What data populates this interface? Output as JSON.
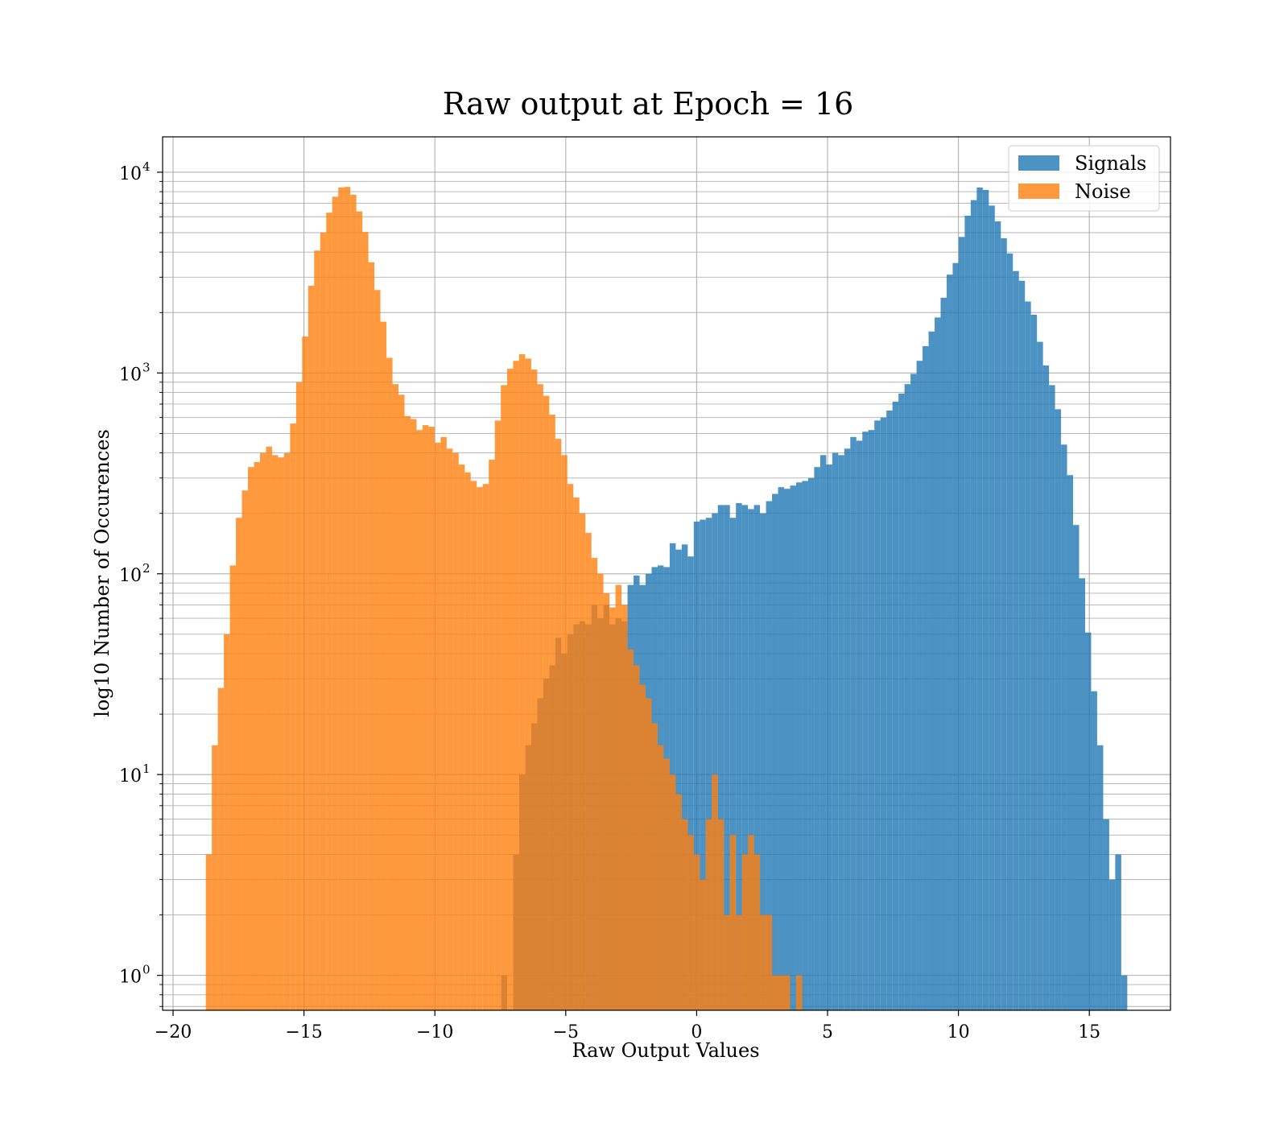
{
  "chart_data": {
    "type": "bar",
    "title": "Raw output at Epoch = 16",
    "xlabel": "Raw Output Values",
    "ylabel": "log10 Number of Occurences",
    "xlim": [
      -20.4,
      18.1
    ],
    "ylim": [
      0.67,
      15000
    ],
    "yscale": "log",
    "grid": true,
    "legend_position": "top-right",
    "x_ticks": [
      {
        "value": -20,
        "label": "−20"
      },
      {
        "value": -15,
        "label": "−15"
      },
      {
        "value": -10,
        "label": "−10"
      },
      {
        "value": -5,
        "label": "−5"
      },
      {
        "value": 0,
        "label": "0"
      },
      {
        "value": 5,
        "label": "5"
      },
      {
        "value": 10,
        "label": "10"
      },
      {
        "value": 15,
        "label": "15"
      }
    ],
    "y_ticks": [
      {
        "value": 1,
        "base": "10",
        "exp": "0"
      },
      {
        "value": 10,
        "base": "10",
        "exp": "1"
      },
      {
        "value": 100,
        "base": "10",
        "exp": "2"
      },
      {
        "value": 1000,
        "base": "10",
        "exp": "3"
      },
      {
        "value": 10000,
        "base": "10",
        "exp": "4"
      }
    ],
    "series": [
      {
        "name": "Signals",
        "color": "#1f77b4",
        "opacity": 0.8,
        "bins": [
          [
            -7.47,
            -7.24,
            1
          ],
          [
            -7.24,
            -7.01,
            0
          ],
          [
            -7.01,
            -6.78,
            4
          ],
          [
            -6.78,
            -6.55,
            10
          ],
          [
            -6.55,
            -6.32,
            14
          ],
          [
            -6.32,
            -6.09,
            18
          ],
          [
            -6.09,
            -5.86,
            24
          ],
          [
            -5.86,
            -5.63,
            30
          ],
          [
            -5.63,
            -5.4,
            35
          ],
          [
            -5.4,
            -5.17,
            48
          ],
          [
            -5.17,
            -4.94,
            40
          ],
          [
            -4.94,
            -4.71,
            50
          ],
          [
            -4.71,
            -4.48,
            56
          ],
          [
            -4.48,
            -4.25,
            58
          ],
          [
            -4.25,
            -4.02,
            56
          ],
          [
            -4.02,
            -3.79,
            70
          ],
          [
            -3.79,
            -3.56,
            60
          ],
          [
            -3.56,
            -3.33,
            70
          ],
          [
            -3.33,
            -3.1,
            56
          ],
          [
            -3.1,
            -2.87,
            60
          ],
          [
            -2.87,
            -2.64,
            58
          ],
          [
            -2.64,
            -2.41,
            88
          ],
          [
            -2.41,
            -2.18,
            98
          ],
          [
            -2.18,
            -1.95,
            88
          ],
          [
            -1.95,
            -1.72,
            100
          ],
          [
            -1.72,
            -1.49,
            108
          ],
          [
            -1.49,
            -1.26,
            110
          ],
          [
            -1.26,
            -1.03,
            108
          ],
          [
            -1.03,
            -0.8,
            142
          ],
          [
            -0.8,
            -0.57,
            132
          ],
          [
            -0.57,
            -0.34,
            140
          ],
          [
            -0.34,
            -0.11,
            122
          ],
          [
            -0.11,
            0.12,
            182
          ],
          [
            0.12,
            0.35,
            186
          ],
          [
            0.35,
            0.58,
            190
          ],
          [
            0.58,
            0.81,
            200
          ],
          [
            0.81,
            1.04,
            220
          ],
          [
            1.04,
            1.27,
            220
          ],
          [
            1.27,
            1.5,
            190
          ],
          [
            1.5,
            1.73,
            225
          ],
          [
            1.73,
            1.96,
            220
          ],
          [
            1.96,
            2.19,
            210
          ],
          [
            2.19,
            2.42,
            220
          ],
          [
            2.42,
            2.65,
            200
          ],
          [
            2.65,
            2.88,
            230
          ],
          [
            2.88,
            3.11,
            250
          ],
          [
            3.11,
            3.34,
            270
          ],
          [
            3.34,
            3.57,
            265
          ],
          [
            3.57,
            3.8,
            275
          ],
          [
            3.8,
            4.03,
            285
          ],
          [
            4.03,
            4.26,
            290
          ],
          [
            4.26,
            4.49,
            300
          ],
          [
            4.49,
            4.72,
            340
          ],
          [
            4.72,
            4.95,
            390
          ],
          [
            4.95,
            5.18,
            350
          ],
          [
            5.18,
            5.41,
            400
          ],
          [
            5.41,
            5.64,
            390
          ],
          [
            5.64,
            5.87,
            420
          ],
          [
            5.87,
            6.1,
            480
          ],
          [
            6.1,
            6.33,
            460
          ],
          [
            6.33,
            6.56,
            510
          ],
          [
            6.56,
            6.79,
            520
          ],
          [
            6.79,
            7.02,
            580
          ],
          [
            7.02,
            7.25,
            600
          ],
          [
            7.25,
            7.48,
            650
          ],
          [
            7.48,
            7.71,
            720
          ],
          [
            7.71,
            7.94,
            790
          ],
          [
            7.94,
            8.17,
            880
          ],
          [
            8.17,
            8.4,
            990
          ],
          [
            8.4,
            8.63,
            1150
          ],
          [
            8.63,
            8.86,
            1360
          ],
          [
            8.86,
            9.09,
            1610
          ],
          [
            9.09,
            9.32,
            1890
          ],
          [
            9.32,
            9.55,
            2370
          ],
          [
            9.55,
            9.78,
            3090
          ],
          [
            9.78,
            10.01,
            3530
          ],
          [
            10.01,
            10.24,
            4760
          ],
          [
            10.24,
            10.47,
            6070
          ],
          [
            10.47,
            10.7,
            7260
          ],
          [
            10.7,
            10.93,
            8390
          ],
          [
            10.93,
            11.16,
            8160
          ],
          [
            11.16,
            11.39,
            6820
          ],
          [
            11.39,
            11.62,
            5690
          ],
          [
            11.62,
            11.85,
            4690
          ],
          [
            11.85,
            12.08,
            3940
          ],
          [
            12.08,
            12.31,
            3220
          ],
          [
            12.31,
            12.54,
            2880
          ],
          [
            12.54,
            12.77,
            2270
          ],
          [
            12.77,
            13.0,
            1950
          ],
          [
            13.0,
            13.23,
            1430
          ],
          [
            13.23,
            13.46,
            1090
          ],
          [
            13.46,
            13.69,
            870
          ],
          [
            13.69,
            13.92,
            660
          ],
          [
            13.92,
            14.15,
            440
          ],
          [
            14.15,
            14.38,
            310
          ],
          [
            14.38,
            14.61,
            175
          ],
          [
            14.61,
            14.84,
            95
          ],
          [
            14.84,
            15.07,
            51
          ],
          [
            15.07,
            15.3,
            26
          ],
          [
            15.3,
            15.53,
            14
          ],
          [
            15.53,
            15.76,
            6
          ],
          [
            15.76,
            15.99,
            3
          ],
          [
            15.99,
            16.22,
            4
          ],
          [
            16.22,
            16.45,
            1
          ]
        ]
      },
      {
        "name": "Noise",
        "color": "#ff7f0e",
        "opacity": 0.8,
        "bins": [
          [
            -18.75,
            -18.52,
            4
          ],
          [
            -18.52,
            -18.29,
            14
          ],
          [
            -18.29,
            -18.06,
            27
          ],
          [
            -18.06,
            -17.83,
            50
          ],
          [
            -17.83,
            -17.6,
            110
          ],
          [
            -17.6,
            -17.37,
            190
          ],
          [
            -17.37,
            -17.14,
            260
          ],
          [
            -17.14,
            -16.91,
            340
          ],
          [
            -16.91,
            -16.68,
            360
          ],
          [
            -16.68,
            -16.45,
            400
          ],
          [
            -16.45,
            -16.22,
            430
          ],
          [
            -16.22,
            -15.99,
            390
          ],
          [
            -15.99,
            -15.76,
            380
          ],
          [
            -15.76,
            -15.53,
            400
          ],
          [
            -15.53,
            -15.3,
            560
          ],
          [
            -15.3,
            -15.07,
            900
          ],
          [
            -15.07,
            -14.84,
            1520
          ],
          [
            -14.84,
            -14.61,
            2720
          ],
          [
            -14.61,
            -14.38,
            4070
          ],
          [
            -14.38,
            -14.15,
            5010
          ],
          [
            -14.15,
            -13.92,
            6290
          ],
          [
            -13.92,
            -13.69,
            7550
          ],
          [
            -13.69,
            -13.46,
            8400
          ],
          [
            -13.46,
            -13.23,
            8450
          ],
          [
            -13.23,
            -13.0,
            7730
          ],
          [
            -13.0,
            -12.77,
            6380
          ],
          [
            -12.77,
            -12.54,
            5040
          ],
          [
            -12.54,
            -12.31,
            3560
          ],
          [
            -12.31,
            -12.08,
            2590
          ],
          [
            -12.08,
            -11.85,
            1800
          ],
          [
            -11.85,
            -11.62,
            1190
          ],
          [
            -11.62,
            -11.39,
            880
          ],
          [
            -11.39,
            -11.16,
            780
          ],
          [
            -11.16,
            -10.93,
            610
          ],
          [
            -10.93,
            -10.7,
            590
          ],
          [
            -10.7,
            -10.47,
            520
          ],
          [
            -10.47,
            -10.24,
            550
          ],
          [
            -10.24,
            -10.01,
            540
          ],
          [
            -10.01,
            -9.78,
            450
          ],
          [
            -9.78,
            -9.55,
            480
          ],
          [
            -9.55,
            -9.32,
            420
          ],
          [
            -9.32,
            -9.09,
            400
          ],
          [
            -9.09,
            -8.86,
            350
          ],
          [
            -8.86,
            -8.63,
            320
          ],
          [
            -8.63,
            -8.4,
            290
          ],
          [
            -8.4,
            -8.17,
            270
          ],
          [
            -8.17,
            -7.94,
            280
          ],
          [
            -7.94,
            -7.71,
            370
          ],
          [
            -7.71,
            -7.48,
            580
          ],
          [
            -7.48,
            -7.24,
            870
          ],
          [
            -7.24,
            -7.01,
            1050
          ],
          [
            -7.01,
            -6.78,
            1150
          ],
          [
            -6.78,
            -6.55,
            1240
          ],
          [
            -6.55,
            -6.32,
            1180
          ],
          [
            -6.32,
            -6.09,
            1040
          ],
          [
            -6.09,
            -5.86,
            880
          ],
          [
            -5.86,
            -5.63,
            770
          ],
          [
            -5.63,
            -5.4,
            620
          ],
          [
            -5.4,
            -5.17,
            470
          ],
          [
            -5.17,
            -4.94,
            390
          ],
          [
            -4.94,
            -4.71,
            280
          ],
          [
            -4.71,
            -4.48,
            240
          ],
          [
            -4.48,
            -4.25,
            200
          ],
          [
            -4.25,
            -4.02,
            160
          ],
          [
            -4.02,
            -3.79,
            120
          ],
          [
            -3.79,
            -3.56,
            100
          ],
          [
            -3.56,
            -3.33,
            80
          ],
          [
            -3.33,
            -3.1,
            68
          ],
          [
            -3.1,
            -2.87,
            88
          ],
          [
            -2.87,
            -2.64,
            70
          ],
          [
            -2.64,
            -2.41,
            42
          ],
          [
            -2.41,
            -2.18,
            35
          ],
          [
            -2.18,
            -1.95,
            28
          ],
          [
            -1.95,
            -1.72,
            24
          ],
          [
            -1.72,
            -1.49,
            18
          ],
          [
            -1.49,
            -1.26,
            14
          ],
          [
            -1.26,
            -1.03,
            12
          ],
          [
            -1.03,
            -0.8,
            10
          ],
          [
            -0.8,
            -0.57,
            8
          ],
          [
            -0.57,
            -0.34,
            6
          ],
          [
            -0.34,
            -0.11,
            5
          ],
          [
            -0.11,
            0.12,
            4
          ],
          [
            0.12,
            0.35,
            3
          ],
          [
            0.35,
            0.58,
            6
          ],
          [
            0.58,
            0.81,
            10
          ],
          [
            0.81,
            1.04,
            6
          ],
          [
            1.04,
            1.27,
            2
          ],
          [
            1.27,
            1.5,
            5
          ],
          [
            1.5,
            1.73,
            2
          ],
          [
            1.73,
            1.96,
            4
          ],
          [
            1.96,
            2.19,
            5
          ],
          [
            2.19,
            2.42,
            4
          ],
          [
            2.42,
            2.65,
            2
          ],
          [
            2.65,
            2.88,
            2
          ],
          [
            2.88,
            3.11,
            1
          ],
          [
            3.11,
            3.34,
            1
          ],
          [
            3.34,
            3.57,
            1
          ],
          [
            3.57,
            3.8,
            0
          ],
          [
            3.8,
            4.03,
            1
          ]
        ]
      }
    ]
  }
}
